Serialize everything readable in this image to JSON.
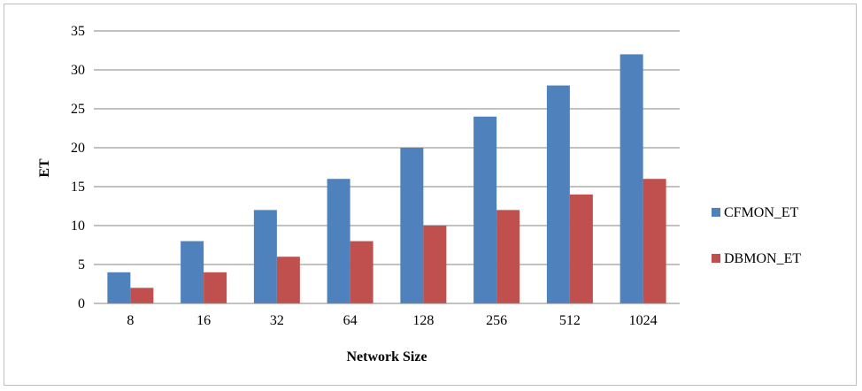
{
  "chart_data": {
    "type": "bar",
    "categories": [
      "8",
      "16",
      "32",
      "64",
      "128",
      "256",
      "512",
      "1024"
    ],
    "series": [
      {
        "name": "CFMON_ET",
        "color": "#4f81bd",
        "values": [
          4,
          8,
          12,
          16,
          20,
          24,
          28,
          32
        ]
      },
      {
        "name": "DBMON_ET",
        "color": "#c0504d",
        "values": [
          2,
          4,
          6,
          8,
          10,
          12,
          14,
          16
        ]
      }
    ],
    "xlabel": "Network Size",
    "ylabel": "ET",
    "ylim": [
      0,
      35
    ],
    "yticks": [
      0,
      5,
      10,
      15,
      20,
      25,
      30,
      35
    ],
    "grid": true,
    "legend": "right"
  }
}
